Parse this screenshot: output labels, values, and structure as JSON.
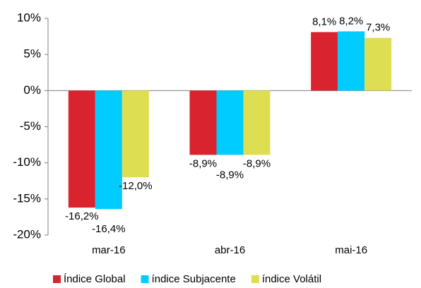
{
  "chart_data": {
    "type": "bar",
    "categories": [
      "mar-16",
      "abr-16",
      "mai-16"
    ],
    "series": [
      {
        "name": "Índice Global",
        "color": "#d9232e",
        "values": [
          -16.2,
          -8.9,
          8.1
        ],
        "value_labels": [
          "-16,2%",
          "-8,9%",
          "8,1%"
        ]
      },
      {
        "name": "índice Subjacente",
        "color": "#00ccff",
        "values": [
          -16.4,
          -8.9,
          8.2
        ],
        "value_labels": [
          "-16,4%",
          "-8,9%",
          "8,2%"
        ]
      },
      {
        "name": "índice Volátil",
        "color": "#dede52",
        "values": [
          -12.0,
          -8.9,
          7.3
        ],
        "value_labels": [
          "-12,0%",
          "-8,9%",
          "7,3%"
        ]
      }
    ],
    "ylim": [
      -20,
      10
    ],
    "yticks": [
      {
        "value": -20,
        "label": "-20%"
      },
      {
        "value": -15,
        "label": "-15%"
      },
      {
        "value": -10,
        "label": "-10%"
      },
      {
        "value": -5,
        "label": "-5%"
      },
      {
        "value": 0,
        "label": "0%"
      },
      {
        "value": 5,
        "label": "5%"
      },
      {
        "value": 10,
        "label": "10%"
      }
    ],
    "grid": false,
    "legend": "bottom"
  }
}
